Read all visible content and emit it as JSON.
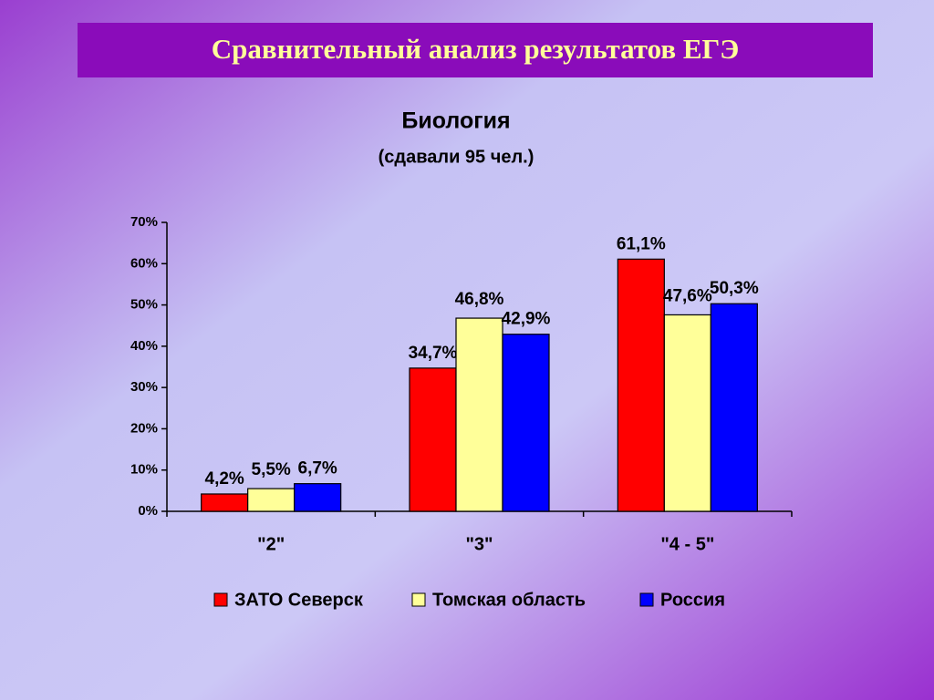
{
  "header": {
    "title": "Сравнительный анализ результатов ЕГЭ"
  },
  "chart_data": {
    "type": "bar",
    "title": "Биология",
    "subtitle": "(сдавали 95 чел.)",
    "categories": [
      "\"2\"",
      "\"3\"",
      "\"4 - 5\""
    ],
    "series": [
      {
        "name": "ЗАТО Северск",
        "color": "#ff0000",
        "values": [
          4.2,
          34.7,
          61.1
        ],
        "value_labels": [
          "4,2%",
          "34,7%",
          "61,1%"
        ]
      },
      {
        "name": "Томская область",
        "color": "#ffff99",
        "values": [
          5.5,
          46.8,
          47.6
        ],
        "value_labels": [
          "5,5%",
          "46,8%",
          "47,6%"
        ]
      },
      {
        "name": "Россия",
        "color": "#0000ff",
        "values": [
          6.7,
          42.9,
          50.3
        ],
        "value_labels": [
          "6,7%",
          "42,9%",
          "50,3%"
        ]
      }
    ],
    "ylim": [
      0,
      70
    ],
    "yticks": [
      {
        "value": 0,
        "label": "0%"
      },
      {
        "value": 10,
        "label": "10%"
      },
      {
        "value": 20,
        "label": "20%"
      },
      {
        "value": 30,
        "label": "30%"
      },
      {
        "value": 40,
        "label": "40%"
      },
      {
        "value": 50,
        "label": "50%"
      },
      {
        "value": 60,
        "label": "60%"
      },
      {
        "value": 70,
        "label": "70%"
      }
    ],
    "grid": false,
    "legend": "bottom"
  }
}
